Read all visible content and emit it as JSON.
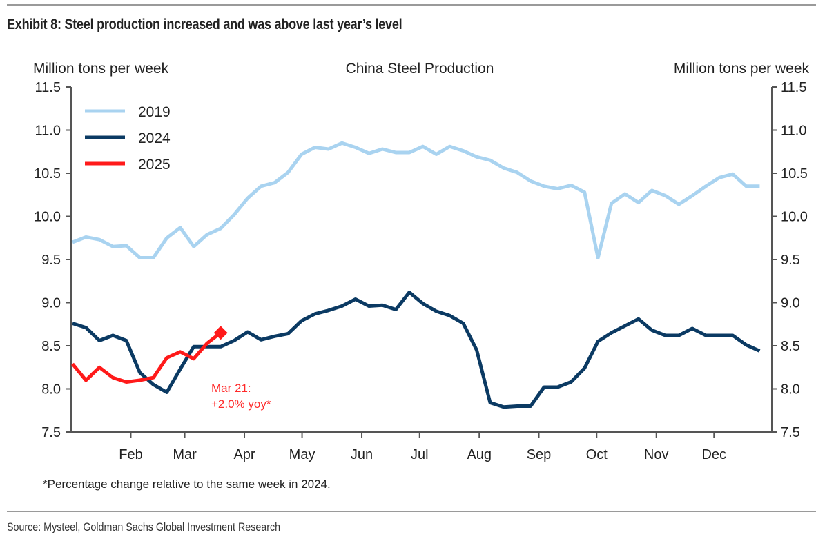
{
  "exhibit": {
    "title": "Exhibit 8: Steel production increased and was above last year’s level",
    "source": "Source: Mysteel, Goldman Sachs Global Investment Research",
    "footnote": "*Percentage change relative to the same week in 2024."
  },
  "chart_data": {
    "type": "line",
    "title": "China Steel Production",
    "ylabel_left": "Million tons per week",
    "ylabel_right": "Million tons per week",
    "xlabel": "",
    "ylim": [
      7.5,
      11.5
    ],
    "yticks": [
      7.5,
      8.0,
      8.5,
      9.0,
      9.5,
      10.0,
      10.5,
      11.0,
      11.5
    ],
    "ytick_labels": [
      "7.5",
      "8.0",
      "8.5",
      "9.0",
      "9.5",
      "10.0",
      "10.5",
      "11.0",
      "11.5"
    ],
    "x_unit": "week of year",
    "xlim_weeks": [
      0,
      52
    ],
    "xticks": [
      {
        "label": "Feb",
        "week": 4.43
      },
      {
        "label": "Mar",
        "week": 8.43
      },
      {
        "label": "Apr",
        "week": 12.86
      },
      {
        "label": "May",
        "week": 17.14
      },
      {
        "label": "Jun",
        "week": 21.57
      },
      {
        "label": "Jul",
        "week": 25.86
      },
      {
        "label": "Aug",
        "week": 30.29
      },
      {
        "label": "Sep",
        "week": 34.71
      },
      {
        "label": "Oct",
        "week": 39.0
      },
      {
        "label": "Nov",
        "week": 43.43
      },
      {
        "label": "Dec",
        "week": 47.71
      }
    ],
    "grid": false,
    "legend_position": "top-left",
    "series": [
      {
        "name": "2019",
        "color": "#a9d3f0",
        "values": [
          9.7,
          9.76,
          9.73,
          9.65,
          9.66,
          9.52,
          9.52,
          9.75,
          9.87,
          9.65,
          9.79,
          9.86,
          10.02,
          10.21,
          10.35,
          10.39,
          10.51,
          10.72,
          10.8,
          10.78,
          10.85,
          10.8,
          10.73,
          10.78,
          10.74,
          10.74,
          10.81,
          10.72,
          10.81,
          10.76,
          10.69,
          10.65,
          10.56,
          10.51,
          10.41,
          10.35,
          10.32,
          10.36,
          10.28,
          9.52,
          10.15,
          10.26,
          10.16,
          10.3,
          10.24,
          10.14,
          10.24,
          10.35,
          10.45,
          10.49,
          10.35,
          10.35
        ]
      },
      {
        "name": "2024",
        "color": "#0b3a63",
        "values": [
          8.76,
          8.71,
          8.56,
          8.62,
          8.56,
          8.19,
          8.05,
          7.96,
          8.23,
          8.49,
          8.49,
          8.49,
          8.56,
          8.66,
          8.57,
          8.61,
          8.64,
          8.79,
          8.87,
          8.91,
          8.96,
          9.04,
          8.96,
          8.97,
          8.92,
          9.12,
          8.99,
          8.9,
          8.85,
          8.76,
          8.45,
          7.84,
          7.79,
          7.8,
          7.8,
          8.02,
          8.02,
          8.08,
          8.24,
          8.55,
          8.65,
          8.73,
          8.81,
          8.68,
          8.62,
          8.62,
          8.7,
          8.62,
          8.62,
          8.62,
          8.51,
          8.44
        ]
      },
      {
        "name": "2025",
        "color": "#ff1a1a",
        "values": [
          8.29,
          8.1,
          8.25,
          8.13,
          8.08,
          8.1,
          8.13,
          8.36,
          8.43,
          8.35,
          8.53,
          8.65
        ],
        "last_point_marker": "diamond"
      }
    ],
    "annotations": [
      {
        "text_line1": "Mar 21:",
        "text_line2": "+2.0% yoy*",
        "color": "#ff2a2a",
        "anchor": "2025 last point"
      }
    ]
  }
}
